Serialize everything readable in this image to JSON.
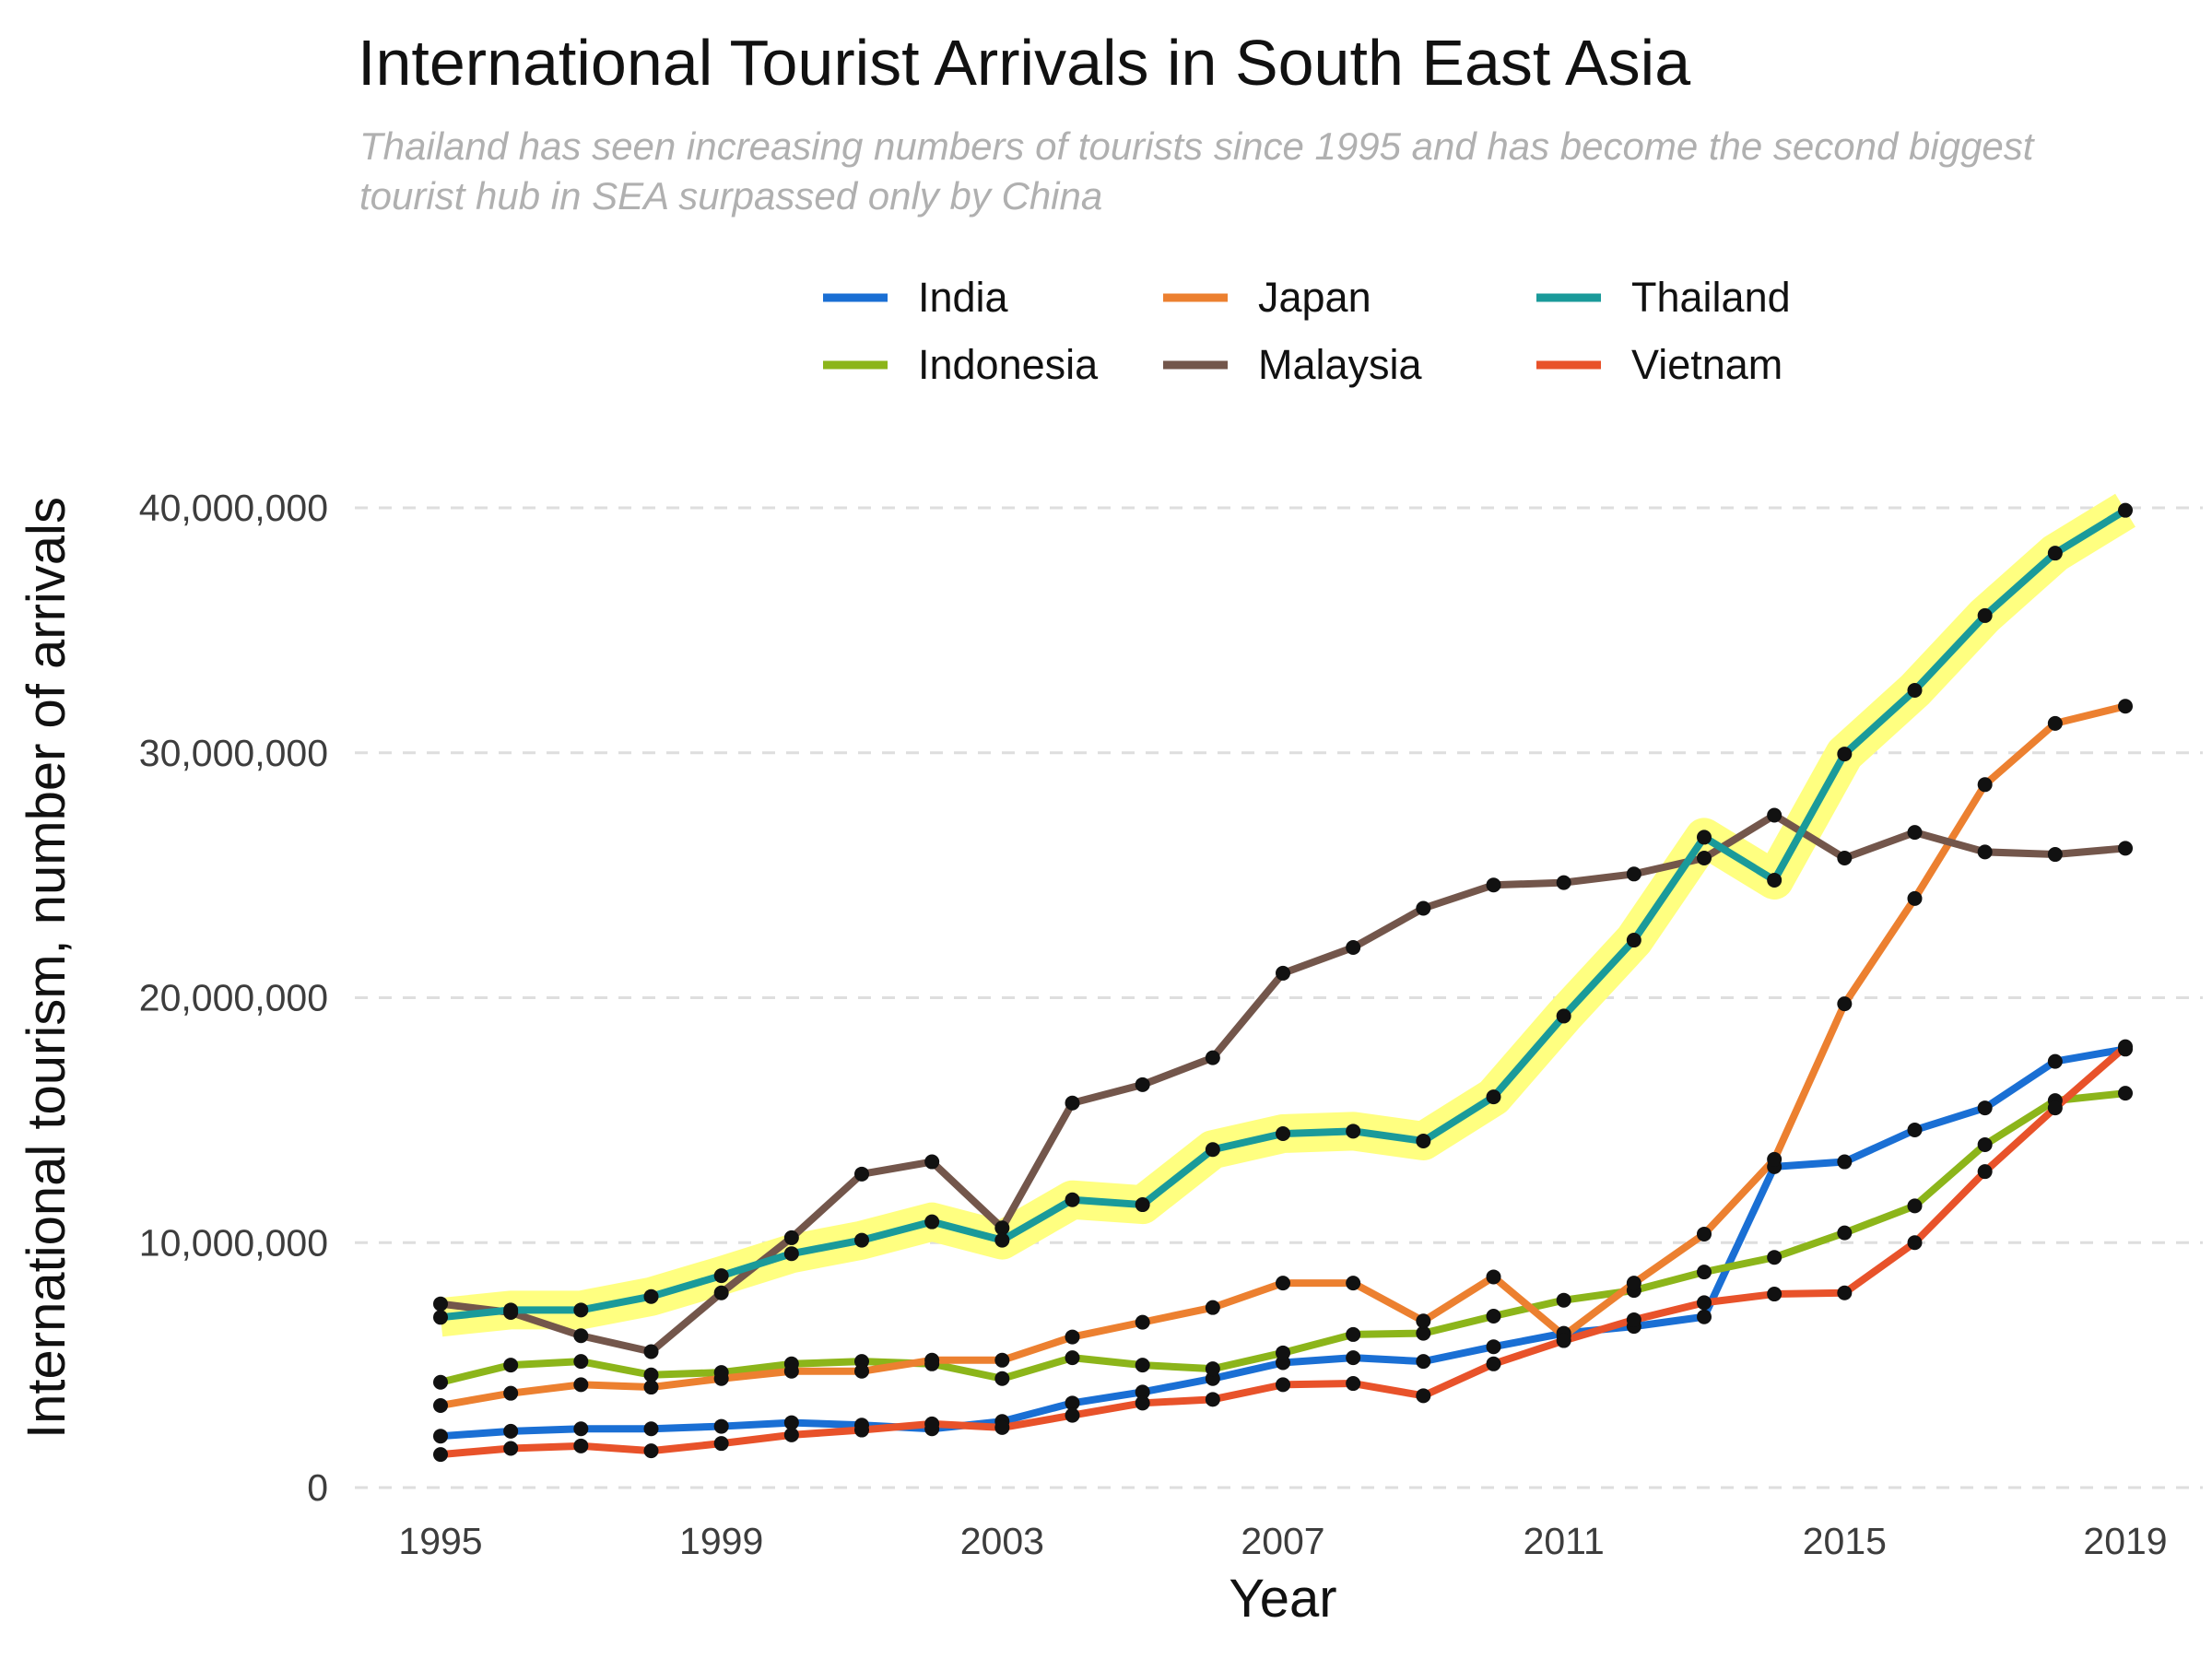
{
  "title": "International Tourist Arrivals in South East Asia",
  "subtitle": "Thailand has seen increasing numbers of tourists since 1995 and has become the second biggest tourist hub in SEA surpassed only by China",
  "chart_data": {
    "type": "line",
    "title": "International Tourist Arrivals in South East Asia",
    "subtitle": "Thailand has seen increasing numbers of tourists since 1995 and has become the second biggest tourist hub in SEA surpassed only by China",
    "xlabel": "Year",
    "ylabel": "International tourism, number of arrivals",
    "x": [
      1995,
      1996,
      1997,
      1998,
      1999,
      2000,
      2001,
      2002,
      2003,
      2004,
      2005,
      2006,
      2007,
      2008,
      2009,
      2010,
      2011,
      2012,
      2013,
      2014,
      2015,
      2016,
      2017,
      2018,
      2019
    ],
    "xlim": [
      1995,
      2019
    ],
    "ylim": [
      0,
      40000000
    ],
    "x_ticks": [
      1995,
      1999,
      2003,
      2007,
      2011,
      2015,
      2019
    ],
    "x_tick_labels": [
      "1995",
      "1999",
      "2003",
      "2007",
      "2011",
      "2015",
      "2019"
    ],
    "y_ticks": [
      0,
      10000000,
      20000000,
      30000000,
      40000000
    ],
    "y_tick_labels": [
      "0",
      "10,000,000",
      "20,000,000",
      "30,000,000",
      "40,000,000"
    ],
    "grid": "horizontal dashed",
    "legend_position": "top",
    "highlighted_series": "Thailand",
    "highlight_color": "#ffff80",
    "point_color": "#111111",
    "series": [
      {
        "name": "India",
        "color": "#1a6fd4",
        "values": [
          2100000,
          2300000,
          2400000,
          2400000,
          2500000,
          2650000,
          2550000,
          2400000,
          2700000,
          3450000,
          3900000,
          4450000,
          5100000,
          5300000,
          5150000,
          5750000,
          6300000,
          6580000,
          6970000,
          13100000,
          13300000,
          14600000,
          15500000,
          17400000,
          17900000
        ]
      },
      {
        "name": "Indonesia",
        "color": "#8cb51a",
        "values": [
          4300000,
          5000000,
          5150000,
          4600000,
          4700000,
          5050000,
          5150000,
          5050000,
          4450000,
          5300000,
          5000000,
          4850000,
          5500000,
          6250000,
          6300000,
          7000000,
          7650000,
          8050000,
          8800000,
          9400000,
          10400000,
          11500000,
          14000000,
          15800000,
          16100000
        ]
      },
      {
        "name": "Japan",
        "color": "#ec8030",
        "values": [
          3350000,
          3850000,
          4200000,
          4100000,
          4450000,
          4750000,
          4750000,
          5200000,
          5200000,
          6150000,
          6750000,
          7350000,
          8350000,
          8350000,
          6800000,
          8600000,
          6200000,
          8350000,
          10350000,
          13400000,
          19750000,
          24050000,
          28700000,
          31200000,
          31900000
        ]
      },
      {
        "name": "Malaysia",
        "color": "#73564b",
        "values": [
          7500000,
          7150000,
          6200000,
          5550000,
          7950000,
          10200000,
          12800000,
          13300000,
          10600000,
          15700000,
          16450000,
          17550000,
          21000000,
          22050000,
          23650000,
          24600000,
          24700000,
          25050000,
          25700000,
          27450000,
          25700000,
          26750000,
          25950000,
          25850000,
          26100000
        ]
      },
      {
        "name": "Thailand",
        "color": "#1a9a9a",
        "values": [
          6950000,
          7250000,
          7250000,
          7800000,
          8650000,
          9550000,
          10100000,
          10850000,
          10100000,
          11750000,
          11550000,
          13800000,
          14450000,
          14550000,
          14150000,
          15950000,
          19250000,
          22350000,
          26550000,
          24800000,
          29950000,
          32550000,
          35600000,
          38150000,
          39900000
        ]
      },
      {
        "name": "Vietnam",
        "color": "#e8522a",
        "values": [
          1350000,
          1600000,
          1700000,
          1500000,
          1800000,
          2150000,
          2350000,
          2600000,
          2450000,
          2950000,
          3450000,
          3600000,
          4200000,
          4250000,
          3750000,
          5050000,
          6000000,
          6850000,
          7550000,
          7900000,
          7950000,
          10000000,
          12900000,
          15500000,
          18000000
        ]
      }
    ]
  }
}
